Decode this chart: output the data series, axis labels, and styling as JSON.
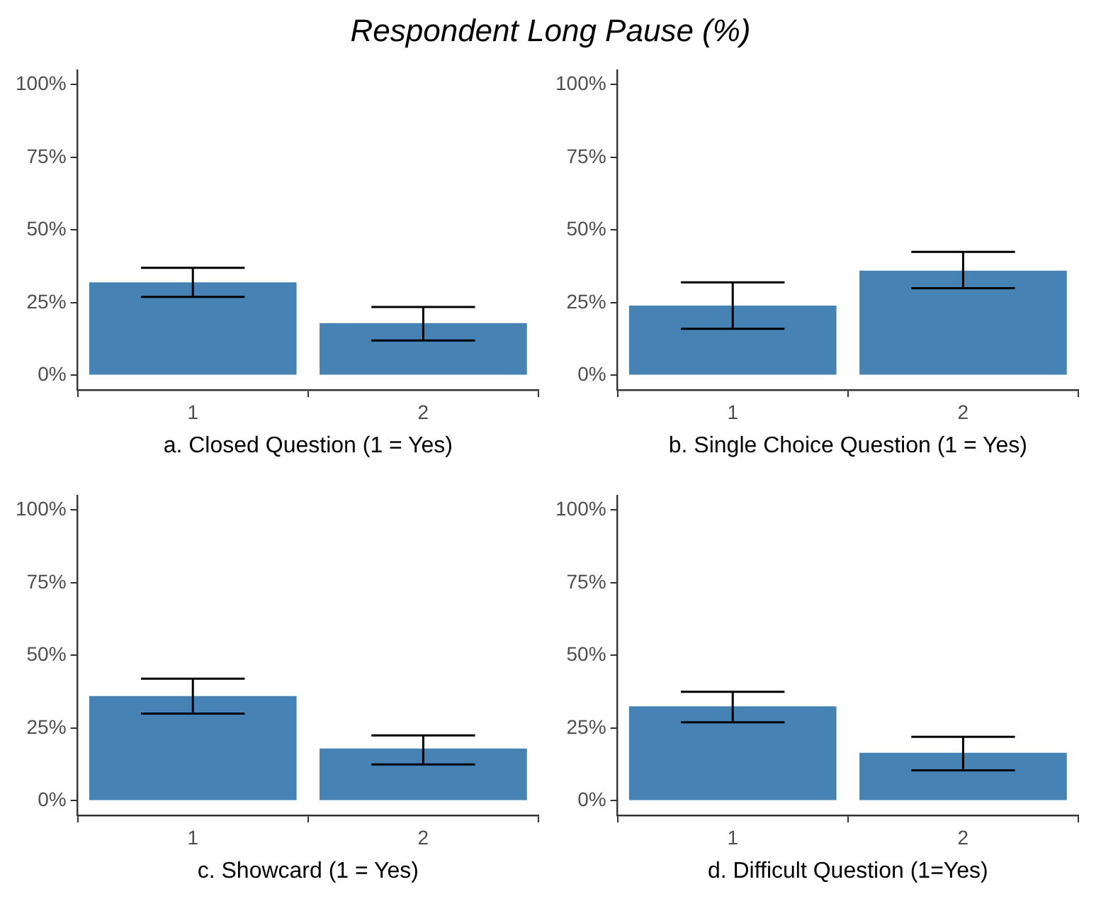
{
  "chart_data": [
    {
      "type": "bar",
      "title": "Respondent Long Pause (%)",
      "xlabel": "a. Closed Question (1 = Yes)",
      "categories": [
        "1",
        "2"
      ],
      "values": [
        32,
        18
      ],
      "errors": [
        [
          27,
          37
        ],
        [
          12,
          23.5
        ]
      ],
      "color": "#4682b4",
      "ylim": [
        -5,
        105
      ],
      "yticks": [
        {
          "value": 0,
          "label": "0%"
        },
        {
          "value": 25,
          "label": "25%"
        },
        {
          "value": 50,
          "label": "50%"
        },
        {
          "value": 75,
          "label": "75%"
        },
        {
          "value": 100,
          "label": "100%"
        }
      ],
      "grid": false
    },
    {
      "type": "bar",
      "xlabel": "b. Single Choice Question (1 = Yes)",
      "categories": [
        "1",
        "2"
      ],
      "values": [
        24,
        36
      ],
      "errors": [
        [
          16,
          32
        ],
        [
          30,
          42.5
        ]
      ],
      "color": "#4682b4",
      "ylim": [
        -5,
        105
      ],
      "yticks": [
        {
          "value": 0,
          "label": "0%"
        },
        {
          "value": 25,
          "label": "25%"
        },
        {
          "value": 50,
          "label": "50%"
        },
        {
          "value": 75,
          "label": "75%"
        },
        {
          "value": 100,
          "label": "100%"
        }
      ],
      "grid": false
    },
    {
      "type": "bar",
      "xlabel": "c. Showcard (1 = Yes)",
      "categories": [
        "1",
        "2"
      ],
      "values": [
        36,
        18
      ],
      "errors": [
        [
          30,
          42
        ],
        [
          12.5,
          22.5
        ]
      ],
      "color": "#4682b4",
      "ylim": [
        -5,
        105
      ],
      "yticks": [
        {
          "value": 0,
          "label": "0%"
        },
        {
          "value": 25,
          "label": "25%"
        },
        {
          "value": 50,
          "label": "50%"
        },
        {
          "value": 75,
          "label": "75%"
        },
        {
          "value": 100,
          "label": "100%"
        }
      ],
      "grid": false
    },
    {
      "type": "bar",
      "xlabel": "d. Difficult Question (1=Yes)",
      "categories": [
        "1",
        "2"
      ],
      "values": [
        32.5,
        16.5
      ],
      "errors": [
        [
          27,
          37.5
        ],
        [
          10.5,
          22
        ]
      ],
      "color": "#4682b4",
      "ylim": [
        -5,
        105
      ],
      "yticks": [
        {
          "value": 0,
          "label": "0%"
        },
        {
          "value": 25,
          "label": "25%"
        },
        {
          "value": 50,
          "label": "50%"
        },
        {
          "value": 75,
          "label": "75%"
        },
        {
          "value": 100,
          "label": "100%"
        }
      ],
      "grid": false
    }
  ]
}
